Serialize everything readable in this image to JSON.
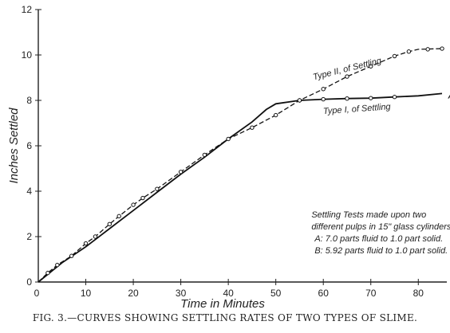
{
  "caption": "FIG. 3.—CURVES SHOWING SETTLING RATES OF TWO TYPES OF SLIME.",
  "chart_data": {
    "type": "line",
    "xlabel": "Time in Minutes",
    "ylabel": "Inches Settled",
    "xlim": [
      0,
      86
    ],
    "ylim": [
      0,
      12
    ],
    "x_ticks": [
      10,
      20,
      30,
      40,
      50,
      60,
      70,
      80
    ],
    "y_ticks": [
      0,
      2,
      4,
      6,
      8,
      10,
      12
    ],
    "grid": false,
    "series": [
      {
        "name": "A",
        "style": "solid",
        "label": "Type I, of Settling",
        "points": [
          [
            0,
            0
          ],
          [
            5,
            0.85
          ],
          [
            10,
            1.55
          ],
          [
            15,
            2.35
          ],
          [
            20,
            3.15
          ],
          [
            25,
            3.95
          ],
          [
            30,
            4.75
          ],
          [
            35,
            5.5
          ],
          [
            40,
            6.3
          ],
          [
            45,
            7.05
          ],
          [
            48,
            7.6
          ],
          [
            50,
            7.85
          ],
          [
            55,
            8.0
          ],
          [
            60,
            8.05
          ],
          [
            65,
            8.08
          ],
          [
            70,
            8.1
          ],
          [
            75,
            8.15
          ],
          [
            80,
            8.2
          ],
          [
            85,
            8.3
          ]
        ],
        "markers": [
          [
            55,
            8.0
          ],
          [
            60,
            8.05
          ],
          [
            65,
            8.08
          ],
          [
            70,
            8.1
          ],
          [
            75,
            8.15
          ]
        ]
      },
      {
        "name": "B",
        "style": "dashed",
        "label": "Type II, of Settling",
        "points": [
          [
            0,
            0
          ],
          [
            2,
            0.4
          ],
          [
            4,
            0.75
          ],
          [
            7,
            1.15
          ],
          [
            10,
            1.7
          ],
          [
            12,
            2.0
          ],
          [
            15,
            2.55
          ],
          [
            17,
            2.9
          ],
          [
            20,
            3.4
          ],
          [
            22,
            3.7
          ],
          [
            25,
            4.1
          ],
          [
            30,
            4.85
          ],
          [
            35,
            5.6
          ],
          [
            40,
            6.3
          ],
          [
            45,
            6.8
          ],
          [
            50,
            7.35
          ],
          [
            55,
            8.0
          ],
          [
            60,
            8.5
          ],
          [
            65,
            9.05
          ],
          [
            70,
            9.5
          ],
          [
            75,
            9.95
          ],
          [
            78,
            10.15
          ],
          [
            80,
            10.25
          ],
          [
            85,
            10.28
          ]
        ],
        "markers": [
          [
            2,
            0.4
          ],
          [
            4,
            0.75
          ],
          [
            7,
            1.15
          ],
          [
            10,
            1.7
          ],
          [
            12,
            2.0
          ],
          [
            15,
            2.55
          ],
          [
            17,
            2.9
          ],
          [
            20,
            3.4
          ],
          [
            22,
            3.7
          ],
          [
            25,
            4.1
          ],
          [
            30,
            4.85
          ],
          [
            35,
            5.6
          ],
          [
            40,
            6.3
          ],
          [
            45,
            6.8
          ],
          [
            50,
            7.35
          ],
          [
            55,
            8.0
          ],
          [
            60,
            8.5
          ],
          [
            65,
            9.05
          ],
          [
            70,
            9.5
          ],
          [
            75,
            9.95
          ],
          [
            78,
            10.15
          ],
          [
            82,
            10.25
          ],
          [
            85,
            10.28
          ]
        ]
      }
    ],
    "annotations": [
      "Settling Tests made upon two",
      "different pulps in 15\" glass cylinders.",
      "A: 7.0 parts fluid to 1.0 part solid.",
      "B: 5.92 parts fluid to 1.0 part solid."
    ]
  }
}
